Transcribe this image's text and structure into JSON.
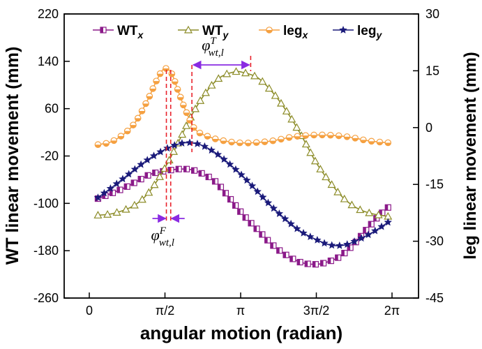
{
  "chart_data": {
    "type": "line",
    "xlabel": "angular motion (radian)",
    "ylabel_left": "WT linear movement (mm)",
    "ylabel_right": "leg linear movement (mm)",
    "xlim": [
      0,
      6.2832
    ],
    "ylim_left": [
      -260,
      220
    ],
    "ylim_right": [
      -45,
      30
    ],
    "x_ticks": [
      {
        "value": 0,
        "label": "0"
      },
      {
        "value": 1.5708,
        "label": "π/2"
      },
      {
        "value": 3.1416,
        "label": "π"
      },
      {
        "value": 4.7124,
        "label": "3π/2"
      },
      {
        "value": 6.2832,
        "label": "2π"
      }
    ],
    "y_ticks_left": [
      220,
      140,
      60,
      -20,
      -100,
      -180,
      -260
    ],
    "y_ticks_right": [
      30,
      15,
      0,
      -15,
      -30,
      -45
    ],
    "grid": false,
    "legend_position": "top",
    "series": [
      {
        "name": "WTx",
        "legend_base": "WT",
        "legend_sub": "x",
        "axis": "left",
        "color": "#8B1A89",
        "marker": "square",
        "x": [
          0.18,
          0.7,
          1.05,
          1.3,
          1.6,
          1.9,
          2.2,
          2.6,
          2.9,
          3.2,
          3.5,
          3.8,
          4.1,
          4.4,
          4.7,
          4.9,
          5.2,
          5.5,
          5.8,
          6.0,
          6.2
        ],
        "y": [
          -92,
          -75,
          -60,
          -50,
          -45,
          -42,
          -45,
          -62,
          -90,
          -120,
          -145,
          -170,
          -188,
          -200,
          -203,
          -200,
          -190,
          -168,
          -140,
          -122,
          -107
        ]
      },
      {
        "name": "WTy",
        "legend_base": "WT",
        "legend_sub": "y",
        "axis": "left",
        "color": "#8C8C28",
        "marker": "triangle",
        "x": [
          0.18,
          0.5,
          0.9,
          1.2,
          1.5,
          1.8,
          2.1,
          2.4,
          2.7,
          3.0,
          3.2,
          3.5,
          3.8,
          4.1,
          4.4,
          4.7,
          5.0,
          5.3,
          5.6,
          5.9,
          6.2
        ],
        "y": [
          -120,
          -117,
          -105,
          -85,
          -50,
          -5,
          45,
          85,
          112,
          122,
          121,
          112,
          88,
          55,
          15,
          -30,
          -65,
          -93,
          -110,
          -118,
          -122
        ]
      },
      {
        "name": "legx",
        "legend_base": "leg",
        "legend_sub": "x",
        "axis": "right",
        "color": "#F5A040",
        "marker": "circle",
        "x": [
          0.18,
          0.5,
          0.9,
          1.2,
          1.4,
          1.55,
          1.7,
          1.85,
          2.0,
          2.2,
          2.5,
          2.8,
          3.1,
          3.4,
          3.8,
          4.2,
          4.6,
          5.0,
          5.4,
          5.8,
          6.2
        ],
        "y": [
          -4.5,
          -3.5,
          0.5,
          7.0,
          12.5,
          15.5,
          14.5,
          9.5,
          4.5,
          -0.5,
          -2.5,
          -3.5,
          -4.0,
          -4.0,
          -3.5,
          -2.5,
          -2.0,
          -2.0,
          -2.5,
          -3.5,
          -4.0
        ]
      },
      {
        "name": "legy",
        "legend_base": "leg",
        "legend_sub": "y",
        "axis": "right",
        "color": "#1A1A7A",
        "marker": "star",
        "x": [
          0.18,
          0.5,
          0.8,
          1.1,
          1.4,
          1.7,
          2.0,
          2.3,
          2.6,
          2.9,
          3.2,
          3.5,
          3.8,
          4.1,
          4.4,
          4.7,
          5.0,
          5.3,
          5.6,
          5.9,
          6.2
        ],
        "y": [
          -18.5,
          -15.5,
          -12.5,
          -9.5,
          -7.0,
          -5.0,
          -4.0,
          -4.5,
          -6.5,
          -9.5,
          -13.0,
          -17.0,
          -21.0,
          -24.5,
          -27.5,
          -29.5,
          -31.0,
          -31.0,
          -29.5,
          -27.5,
          -25.0
        ]
      }
    ],
    "annotations": {
      "phase_T": {
        "symbol": "φ",
        "sup": "T",
        "sub": "wt,l",
        "x_from": 2.13,
        "x_to": 3.35
      },
      "phase_F": {
        "symbol": "φ",
        "sup": "F",
        "sub": "wt,l",
        "x_from": 1.6,
        "x_to": 1.69
      },
      "colors": {
        "dash": "#E8212B",
        "arrow": "#8A2BE2"
      }
    }
  }
}
